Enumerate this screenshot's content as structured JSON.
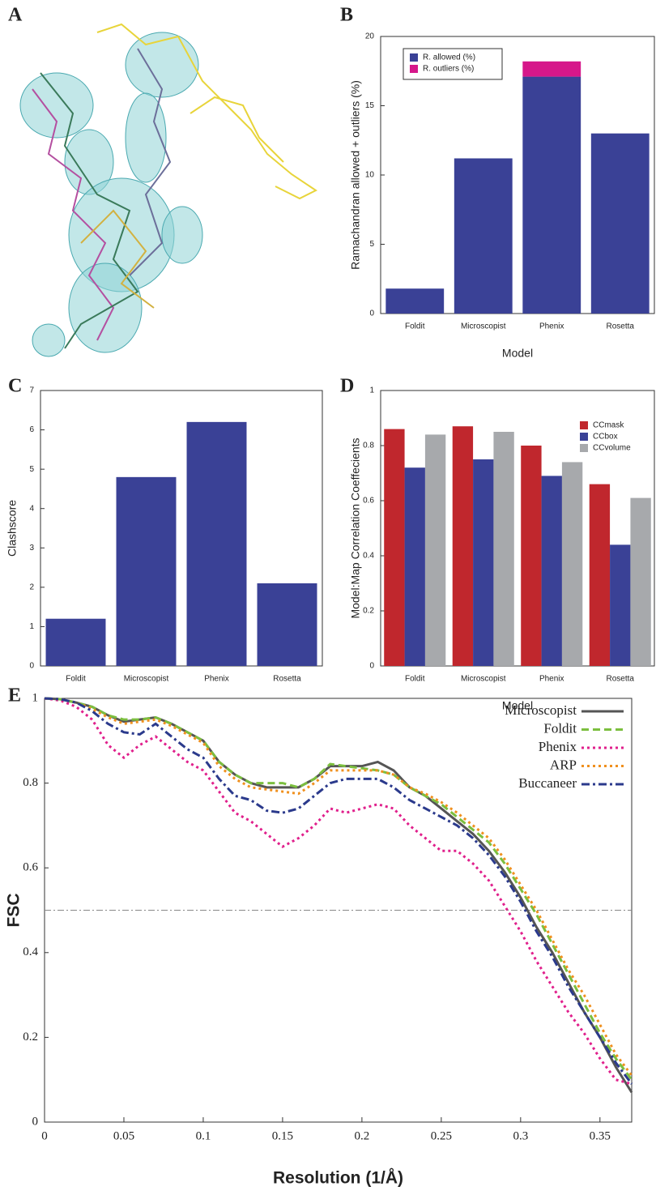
{
  "panel_a_label": "A",
  "chart_data": [
    {
      "type": "bar",
      "panel": "B",
      "stacked": true,
      "categories": [
        "Foldit",
        "Microscopist",
        "Phenix",
        "Rosetta"
      ],
      "series": [
        {
          "name": "R. allowed (%)",
          "color": "#3a4196",
          "values": [
            1.8,
            11.2,
            17.1,
            13.0
          ]
        },
        {
          "name": "R. outliers (%)",
          "color": "#d6178a",
          "values": [
            0,
            0,
            1.1,
            0
          ]
        }
      ],
      "ylim": [
        0,
        20
      ],
      "yticks": [
        0,
        5,
        10,
        15,
        20
      ],
      "ylabel": "Ramachandran allowed + outliers (%)",
      "xlabel": "Model",
      "legend": "upper left"
    },
    {
      "type": "bar",
      "panel": "C",
      "categories": [
        "Foldit",
        "Microscopist",
        "Phenix",
        "Rosetta"
      ],
      "series": [
        {
          "color": "#3a4196",
          "values": [
            1.2,
            4.8,
            6.2,
            2.1
          ]
        }
      ],
      "ylim": [
        0,
        7
      ],
      "yticks": [
        0,
        1,
        2,
        3,
        4,
        5,
        6,
        7
      ],
      "ylabel": "Clashscore"
    },
    {
      "type": "bar",
      "panel": "D",
      "categories": [
        "Foldit",
        "Microscopist",
        "Phenix",
        "Rosetta"
      ],
      "series": [
        {
          "name": "CCmask",
          "color": "#c0272d",
          "values": [
            0.86,
            0.87,
            0.8,
            0.66
          ]
        },
        {
          "name": "CCbox",
          "color": "#3a4196",
          "values": [
            0.72,
            0.75,
            0.69,
            0.44
          ]
        },
        {
          "name": "CCvolume",
          "color": "#a7a9ac",
          "values": [
            0.84,
            0.85,
            0.74,
            0.61
          ]
        }
      ],
      "ylim": [
        0,
        1
      ],
      "yticks": [
        0,
        0.2,
        0.4,
        0.6,
        0.8,
        1
      ],
      "ylabel": "Model:Map Correlation Coeffecients",
      "xlabel": "Model",
      "legend": "upper right"
    },
    {
      "type": "line",
      "panel": "E",
      "x": [
        0,
        0.01,
        0.02,
        0.03,
        0.04,
        0.05,
        0.06,
        0.07,
        0.08,
        0.09,
        0.1,
        0.11,
        0.12,
        0.13,
        0.14,
        0.15,
        0.16,
        0.17,
        0.18,
        0.19,
        0.2,
        0.21,
        0.22,
        0.23,
        0.24,
        0.25,
        0.26,
        0.27,
        0.28,
        0.29,
        0.3,
        0.31,
        0.32,
        0.33,
        0.34,
        0.35,
        0.36,
        0.37
      ],
      "series": [
        {
          "name": "Microscopist",
          "color": "#555555",
          "style": "solid",
          "values": [
            1.0,
            0.998,
            0.99,
            0.98,
            0.96,
            0.945,
            0.95,
            0.955,
            0.94,
            0.92,
            0.9,
            0.85,
            0.82,
            0.8,
            0.79,
            0.79,
            0.79,
            0.81,
            0.84,
            0.84,
            0.84,
            0.85,
            0.83,
            0.79,
            0.77,
            0.74,
            0.71,
            0.68,
            0.64,
            0.59,
            0.53,
            0.46,
            0.4,
            0.33,
            0.26,
            0.2,
            0.13,
            0.07
          ]
        },
        {
          "name": "Foldit",
          "color": "#7cbf3f",
          "style": "dashed",
          "values": [
            1.0,
            0.998,
            0.99,
            0.98,
            0.96,
            0.95,
            0.95,
            0.955,
            0.94,
            0.92,
            0.9,
            0.85,
            0.82,
            0.8,
            0.8,
            0.8,
            0.79,
            0.81,
            0.845,
            0.84,
            0.835,
            0.83,
            0.82,
            0.79,
            0.77,
            0.75,
            0.72,
            0.69,
            0.66,
            0.61,
            0.55,
            0.49,
            0.42,
            0.35,
            0.28,
            0.21,
            0.15,
            0.1
          ]
        },
        {
          "name": "Phenix",
          "color": "#e0208c",
          "style": "dotted",
          "values": [
            1.0,
            0.995,
            0.98,
            0.95,
            0.89,
            0.86,
            0.89,
            0.91,
            0.88,
            0.85,
            0.83,
            0.78,
            0.73,
            0.71,
            0.68,
            0.65,
            0.67,
            0.7,
            0.74,
            0.73,
            0.74,
            0.75,
            0.74,
            0.7,
            0.67,
            0.64,
            0.64,
            0.61,
            0.57,
            0.51,
            0.45,
            0.38,
            0.32,
            0.26,
            0.21,
            0.15,
            0.1,
            0.09
          ]
        },
        {
          "name": "ARP",
          "color": "#f0901e",
          "style": "dotted",
          "values": [
            1.0,
            0.998,
            0.99,
            0.975,
            0.955,
            0.94,
            0.945,
            0.95,
            0.935,
            0.915,
            0.895,
            0.84,
            0.81,
            0.79,
            0.785,
            0.78,
            0.775,
            0.8,
            0.83,
            0.83,
            0.83,
            0.83,
            0.82,
            0.79,
            0.775,
            0.755,
            0.73,
            0.7,
            0.67,
            0.62,
            0.56,
            0.5,
            0.43,
            0.36,
            0.3,
            0.23,
            0.16,
            0.11
          ]
        },
        {
          "name": "Buccaneer",
          "color": "#2b3a8c",
          "style": "dashdot",
          "values": [
            1.0,
            0.998,
            0.99,
            0.97,
            0.94,
            0.92,
            0.915,
            0.94,
            0.91,
            0.88,
            0.86,
            0.81,
            0.77,
            0.76,
            0.735,
            0.73,
            0.74,
            0.77,
            0.8,
            0.81,
            0.81,
            0.81,
            0.79,
            0.76,
            0.74,
            0.72,
            0.7,
            0.67,
            0.63,
            0.58,
            0.52,
            0.45,
            0.39,
            0.32,
            0.26,
            0.2,
            0.14,
            0.09
          ]
        }
      ],
      "xlim": [
        0,
        0.37
      ],
      "xticks": [
        0,
        0.05,
        0.1,
        0.15,
        0.2,
        0.25,
        0.3,
        0.35
      ],
      "ylim": [
        0,
        1
      ],
      "yticks": [
        0,
        0.2,
        0.4,
        0.6,
        0.8,
        1
      ],
      "hline": 0.5,
      "ylabel": "FSC",
      "xlabel": "Resolution (1/Å)",
      "legend": "upper right"
    }
  ]
}
